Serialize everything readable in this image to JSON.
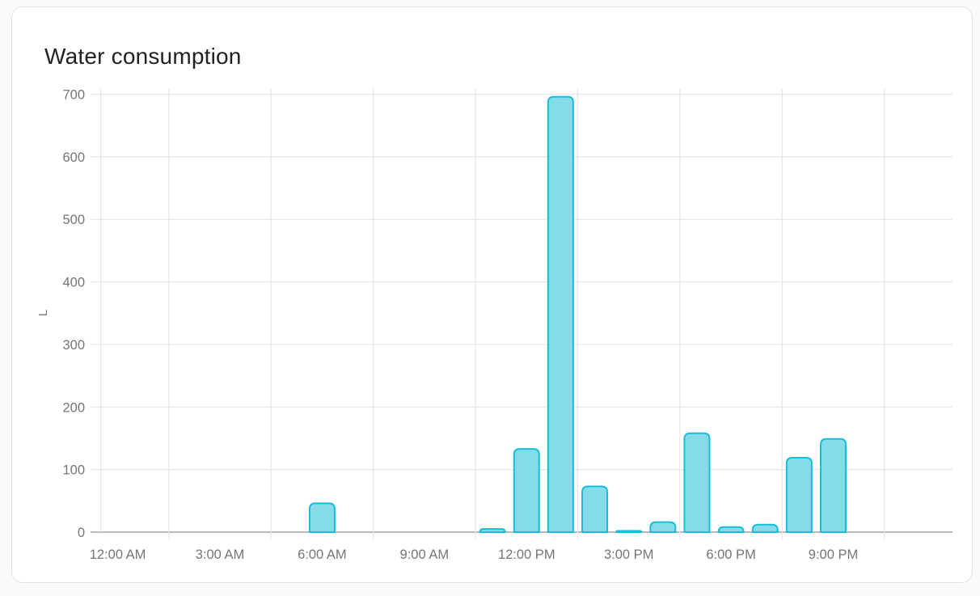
{
  "card": {
    "title": "Water consumption"
  },
  "chart_data": {
    "type": "bar",
    "title": "Water consumption",
    "xlabel": "",
    "ylabel": "L",
    "unit": "L",
    "ylim": [
      0,
      700
    ],
    "y_ticks": [
      0,
      100,
      200,
      300,
      400,
      500,
      600,
      700
    ],
    "x_tick_labels": [
      "12:00 AM",
      "3:00 AM",
      "6:00 AM",
      "9:00 AM",
      "12:00 PM",
      "3:00 PM",
      "6:00 PM",
      "9:00 PM"
    ],
    "x_tick_hours": [
      0,
      3,
      6,
      9,
      12,
      15,
      18,
      21
    ],
    "grid": true,
    "legend": false,
    "series": [
      {
        "name": "Water consumption",
        "unit": "L",
        "hour_values": [
          0,
          0,
          0,
          0,
          0,
          0,
          46,
          0,
          0,
          0,
          0,
          5,
          133,
          696,
          73,
          2,
          16,
          158,
          8,
          12,
          119,
          149,
          0,
          0
        ]
      }
    ]
  },
  "colors": {
    "page_bg": "#fafafa",
    "card_bg": "#ffffff",
    "card_border": "#e2e2e2",
    "title_text": "#212121",
    "axis_text": "#757575",
    "gridline": "#e6e6e6",
    "axis_line": "#b9b9b9",
    "bar_fill": "#86dbe9",
    "bar_border": "#17bed9"
  }
}
